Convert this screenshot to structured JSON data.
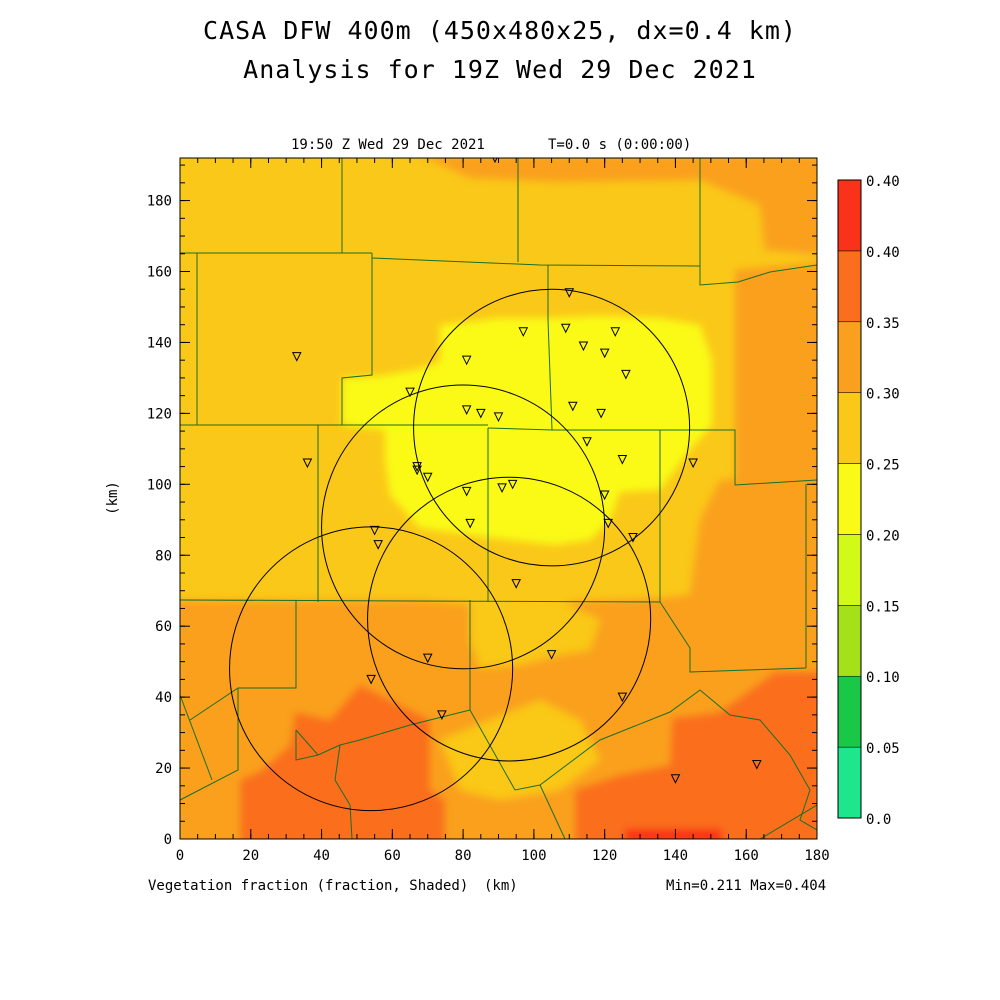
{
  "header": {
    "title_line1": "CASA DFW 400m (450x480x25, dx=0.4 km)",
    "title_line2": "Analysis for 19Z Wed 29 Dec 2021",
    "valid_time": "19:50 Z Wed 29 Dec 2021",
    "model_time": "T=0.0 s (0:00:00)"
  },
  "footer": {
    "field_label": "Vegetation fraction (fraction, Shaded)",
    "axis_unit": "(km)",
    "min_max": "Min=0.211 Max=0.404"
  },
  "y_axis_label": "(km)",
  "colors": {
    "c000": "#1ee68c",
    "c005": "#19c846",
    "c010": "#a5e119",
    "c015": "#d2fa19",
    "c020": "#fafa19",
    "c025": "#fac819",
    "c030": "#faa01e",
    "c035": "#fa6e1e",
    "c040": "#fa3219",
    "border": "#196e28"
  },
  "colorbar": {
    "labels": [
      "0.0",
      "0.05",
      "0.10",
      "0.15",
      "0.20",
      "0.25",
      "0.30",
      "0.35",
      "0.40",
      "0.40"
    ]
  },
  "chart_data": {
    "type": "heatmap",
    "variable": "Vegetation fraction",
    "units": "fraction",
    "x_range_km": [
      0,
      180
    ],
    "y_range_km": [
      0,
      192
    ],
    "x_ticks": [
      "0",
      "20",
      "40",
      "60",
      "80",
      "100",
      "120",
      "140",
      "160",
      "180"
    ],
    "y_ticks": [
      "0",
      "20",
      "40",
      "60",
      "80",
      "100",
      "120",
      "140",
      "160",
      "180"
    ],
    "min": 0.211,
    "max": 0.404,
    "radar_range_rings": [
      {
        "center_km": [
          105,
          116
        ],
        "radius_km": 39
      },
      {
        "center_km": [
          80,
          88
        ],
        "radius_km": 40
      },
      {
        "center_km": [
          93,
          62
        ],
        "radius_km": 40
      },
      {
        "center_km": [
          54,
          48
        ],
        "radius_km": 40
      }
    ],
    "stations_km": [
      [
        110,
        154
      ],
      [
        97,
        143
      ],
      [
        109,
        144
      ],
      [
        114,
        139
      ],
      [
        123,
        143
      ],
      [
        120,
        137
      ],
      [
        126,
        131
      ],
      [
        81,
        135
      ],
      [
        33,
        136
      ],
      [
        65,
        126
      ],
      [
        81,
        121
      ],
      [
        85,
        120
      ],
      [
        90,
        119
      ],
      [
        111,
        122
      ],
      [
        119,
        120
      ],
      [
        115,
        112
      ],
      [
        125,
        107
      ],
      [
        145,
        106
      ],
      [
        36,
        106
      ],
      [
        67,
        105
      ],
      [
        67,
        104
      ],
      [
        70,
        102
      ],
      [
        81,
        98
      ],
      [
        91,
        99
      ],
      [
        94,
        100
      ],
      [
        120,
        97
      ],
      [
        82,
        89
      ],
      [
        121,
        89
      ],
      [
        128,
        85
      ],
      [
        55,
        87
      ],
      [
        56,
        83
      ],
      [
        95,
        72
      ],
      [
        70,
        51
      ],
      [
        105,
        52
      ],
      [
        54,
        45
      ],
      [
        125,
        40
      ],
      [
        74,
        35
      ],
      [
        140,
        17
      ],
      [
        163,
        21
      ],
      [
        89,
        192
      ]
    ]
  }
}
